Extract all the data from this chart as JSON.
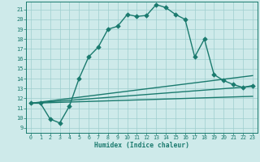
{
  "xlabel": "Humidex (Indice chaleur)",
  "bg_color": "#ceeaea",
  "line_color": "#1a7a6e",
  "grid_color": "#9ecece",
  "xlim": [
    -0.5,
    23.5
  ],
  "ylim": [
    8.5,
    21.8
  ],
  "xticks": [
    0,
    1,
    2,
    3,
    4,
    5,
    6,
    7,
    8,
    9,
    10,
    11,
    12,
    13,
    14,
    15,
    16,
    17,
    18,
    19,
    20,
    21,
    22,
    23
  ],
  "yticks": [
    9,
    10,
    11,
    12,
    13,
    14,
    15,
    16,
    17,
    18,
    19,
    20,
    21
  ],
  "curve1_x": [
    0,
    1,
    2,
    3,
    4,
    5,
    6,
    7,
    8,
    9,
    10,
    11,
    12,
    13,
    14,
    15,
    16,
    17,
    18,
    19,
    20,
    21,
    22,
    23
  ],
  "curve1_y": [
    11.5,
    11.5,
    9.9,
    9.5,
    11.2,
    14.0,
    16.2,
    17.2,
    19.0,
    19.3,
    20.5,
    20.3,
    20.4,
    21.5,
    21.2,
    20.5,
    20.0,
    16.2,
    18.0,
    14.4,
    13.8,
    13.4,
    13.1,
    13.3
  ],
  "line2_x": [
    0,
    23
  ],
  "line2_y": [
    11.5,
    14.3
  ],
  "line3_x": [
    0,
    23
  ],
  "line3_y": [
    11.5,
    13.2
  ],
  "line4_x": [
    0,
    23
  ],
  "line4_y": [
    11.5,
    12.2
  ],
  "markersize": 2.8,
  "linewidth": 1.0
}
